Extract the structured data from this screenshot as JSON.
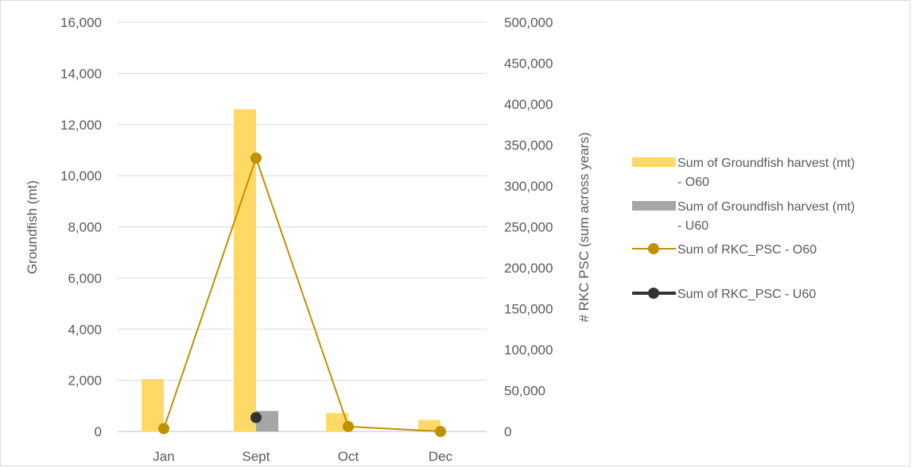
{
  "chart_data": {
    "type": "bar",
    "categories": [
      "Jan",
      "Sept",
      "Oct",
      "Dec"
    ],
    "bar_series": [
      {
        "name": "Sum of Groundfish harvest (mt) - O60",
        "legend_lines": [
          "Sum of Groundfish harvest (mt)",
          "- O60"
        ],
        "color": "#FFD966",
        "values": [
          2050,
          12600,
          720,
          450
        ]
      },
      {
        "name": "Sum of Groundfish harvest (mt) - U60",
        "legend_lines": [
          "Sum of Groundfish harvest (mt)",
          "- U60"
        ],
        "color": "#A6A6A6",
        "values": [
          0,
          800,
          0,
          0
        ]
      }
    ],
    "line_series": [
      {
        "name": "Sum of RKC_PSC - O60",
        "color": "#BF9000",
        "axis": "right",
        "values": [
          3500,
          334000,
          6000,
          0
        ],
        "connected": true
      },
      {
        "name": "Sum of RKC_PSC - U60",
        "color": "#333333",
        "axis": "right",
        "values": [
          null,
          17000,
          null,
          null
        ],
        "connected": true
      }
    ],
    "y_left": {
      "label": "Groundfish (mt)",
      "min": 0,
      "max": 16000,
      "step": 2000,
      "ticks": [
        "0",
        "2,000",
        "4,000",
        "6,000",
        "8,000",
        "10,000",
        "12,000",
        "14,000",
        "16,000"
      ]
    },
    "y_right": {
      "label": "# RKC PSC (sum across years)",
      "min": 0,
      "max": 500000,
      "step": 50000,
      "ticks": [
        "0",
        "50,000",
        "100,000",
        "150,000",
        "200,000",
        "250,000",
        "300,000",
        "350,000",
        "400,000",
        "450,000",
        "500,000"
      ]
    },
    "grid": true,
    "legend_position": "right"
  }
}
